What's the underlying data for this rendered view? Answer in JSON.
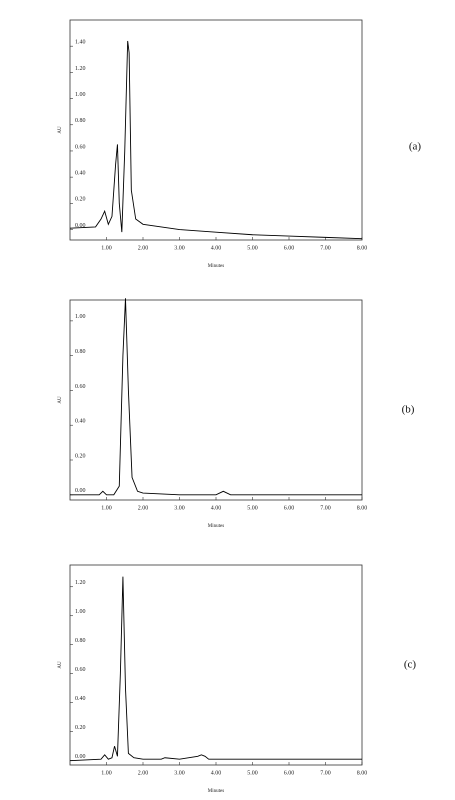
{
  "chart_data": [
    {
      "type": "line",
      "label": "(a)",
      "x_label": "Minutes",
      "y_label": "AU",
      "color": "#000000",
      "x": [
        0,
        0.7,
        0.85,
        0.95,
        1.05,
        1.15,
        1.25,
        1.3,
        1.35,
        1.42,
        1.5,
        1.58,
        1.62,
        1.68,
        1.8,
        2.0,
        3,
        4,
        5,
        6,
        7,
        8
      ],
      "values": [
        0.01,
        0.02,
        0.08,
        0.14,
        0.04,
        0.1,
        0.5,
        0.65,
        0.2,
        -0.02,
        0.6,
        1.44,
        1.35,
        0.3,
        0.08,
        0.04,
        0.0,
        -0.02,
        -0.04,
        -0.05,
        -0.06,
        -0.07
      ],
      "xlim": [
        0,
        8
      ],
      "ylim": [
        -0.08,
        1.6
      ],
      "xticks": [
        {
          "value": 1,
          "label": "1.00"
        },
        {
          "value": 2,
          "label": "2.00"
        },
        {
          "value": 3,
          "label": "3.00"
        },
        {
          "value": 4,
          "label": "4.00"
        },
        {
          "value": 5,
          "label": "5.00"
        },
        {
          "value": 6,
          "label": "6.00"
        },
        {
          "value": 7,
          "label": "7.00"
        },
        {
          "value": 8,
          "label": "8.00"
        }
      ],
      "yticks": [
        {
          "value": 0,
          "label": "0.00"
        },
        {
          "value": 0.2,
          "label": "0.20"
        },
        {
          "value": 0.4,
          "label": "0.40"
        },
        {
          "value": 0.6,
          "label": "0.60"
        },
        {
          "value": 0.8,
          "label": "0.80"
        },
        {
          "value": 1.0,
          "label": "1.00"
        },
        {
          "value": 1.2,
          "label": "1.20"
        },
        {
          "value": 1.4,
          "label": "1.40"
        }
      ]
    },
    {
      "type": "line",
      "label": "(b)",
      "x_label": "Minutes",
      "y_label": "AU",
      "color": "#000000",
      "x": [
        0,
        0.8,
        0.9,
        1.0,
        1.2,
        1.35,
        1.45,
        1.52,
        1.6,
        1.7,
        1.85,
        2.0,
        3,
        4,
        4.2,
        4.4,
        5,
        6,
        7,
        8
      ],
      "values": [
        0,
        0,
        0.02,
        0,
        0,
        0.05,
        0.8,
        1.13,
        0.6,
        0.1,
        0.02,
        0.01,
        0,
        0,
        0.02,
        0,
        0,
        0,
        0,
        0
      ],
      "xlim": [
        0,
        8
      ],
      "ylim": [
        -0.03,
        1.12
      ],
      "xticks": [
        {
          "value": 1,
          "label": "1.00"
        },
        {
          "value": 2,
          "label": "2.00"
        },
        {
          "value": 3,
          "label": "3.00"
        },
        {
          "value": 4,
          "label": "4.00"
        },
        {
          "value": 5,
          "label": "5.00"
        },
        {
          "value": 6,
          "label": "6.00"
        },
        {
          "value": 7,
          "label": "7.00"
        },
        {
          "value": 8,
          "label": "8.00"
        }
      ],
      "yticks": [
        {
          "value": 0,
          "label": "0.00"
        },
        {
          "value": 0.2,
          "label": "0.20"
        },
        {
          "value": 0.4,
          "label": "0.40"
        },
        {
          "value": 0.6,
          "label": "0.60"
        },
        {
          "value": 0.8,
          "label": "0.80"
        },
        {
          "value": 1.0,
          "label": "1.00"
        }
      ]
    },
    {
      "type": "line",
      "label": "(c)",
      "x_label": "Minutes",
      "y_label": "AU",
      "color": "#000000",
      "x": [
        0,
        0.85,
        0.95,
        1.05,
        1.15,
        1.22,
        1.3,
        1.38,
        1.45,
        1.52,
        1.6,
        1.75,
        2,
        2.5,
        2.6,
        3,
        3.5,
        3.6,
        3.7,
        3.8,
        4,
        5,
        6,
        7,
        8
      ],
      "values": [
        0,
        0.01,
        0.04,
        0.01,
        0.02,
        0.1,
        0.03,
        0.6,
        1.27,
        0.5,
        0.05,
        0.02,
        0.01,
        0.01,
        0.02,
        0.01,
        0.03,
        0.04,
        0.03,
        0.01,
        0.01,
        0.01,
        0.01,
        0.01,
        0.01
      ],
      "xlim": [
        0,
        8
      ],
      "ylim": [
        -0.03,
        1.35
      ],
      "xticks": [
        {
          "value": 1,
          "label": "1.00"
        },
        {
          "value": 2,
          "label": "2.00"
        },
        {
          "value": 3,
          "label": "3.00"
        },
        {
          "value": 4,
          "label": "4.00"
        },
        {
          "value": 5,
          "label": "5.00"
        },
        {
          "value": 6,
          "label": "6.00"
        },
        {
          "value": 7,
          "label": "7.00"
        },
        {
          "value": 8,
          "label": "8.00"
        }
      ],
      "yticks": [
        {
          "value": 0,
          "label": "0.00"
        },
        {
          "value": 0.2,
          "label": "0.20"
        },
        {
          "value": 0.4,
          "label": "0.40"
        },
        {
          "value": 0.6,
          "label": "0.60"
        },
        {
          "value": 0.8,
          "label": "0.80"
        },
        {
          "value": 1.0,
          "label": "1.00"
        },
        {
          "value": 1.2,
          "label": "1.20"
        }
      ]
    }
  ]
}
